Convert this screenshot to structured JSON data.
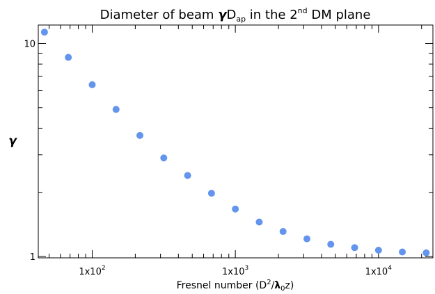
{
  "chart_data": {
    "type": "scatter",
    "title": {
      "prefix": "Diameter of beam ",
      "gamma": "γ",
      "d": "D",
      "d_sub": "ap",
      "middle": " in the 2",
      "sup": "nd",
      "suffix": " DM plane"
    },
    "ylabel": "γ",
    "xlabel": {
      "prefix": "Fresnel number (D",
      "sup": "2",
      "slash": "/",
      "lambda": "λ",
      "lambda_sub": "0",
      "suffix": "z)"
    },
    "xscale": "log",
    "yscale": "log",
    "xlim": [
      42,
      24000
    ],
    "ylim": [
      0.985,
      12.2
    ],
    "xticks": [
      {
        "value": 100,
        "mantissa": "1x10",
        "exp": "2"
      },
      {
        "value": 1000,
        "mantissa": "1x10",
        "exp": "3"
      },
      {
        "value": 10000,
        "mantissa": "1x10",
        "exp": "4"
      }
    ],
    "yticks": [
      {
        "value": 1,
        "label": "1"
      },
      {
        "value": 10,
        "label": "10"
      }
    ],
    "marker_color": "#6495ED",
    "series": [
      {
        "x": [
          46.4,
          68.1,
          100,
          146.8,
          215.4,
          316.2,
          464.2,
          681.3,
          1000,
          1467.8,
          2154.4,
          3162.3,
          4641.6,
          6812.9,
          10000,
          14678,
          21544
        ],
        "y": [
          11.3,
          8.6,
          6.4,
          4.9,
          3.7,
          2.9,
          2.4,
          1.98,
          1.67,
          1.45,
          1.31,
          1.21,
          1.14,
          1.1,
          1.07,
          1.05,
          1.04
        ]
      }
    ]
  }
}
